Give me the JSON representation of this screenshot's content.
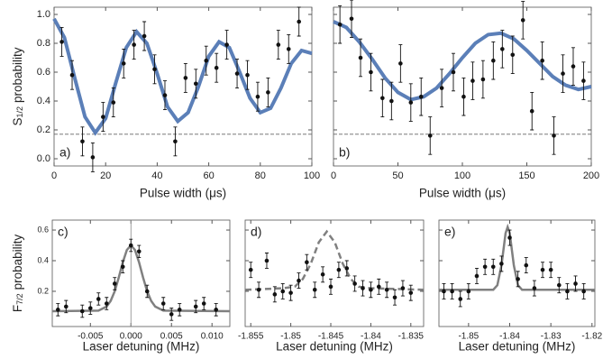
{
  "chart_data": [
    {
      "type": "scatter",
      "label": "a)",
      "label_corner": "bottom-left",
      "xlabel": "Pulse width (μs)",
      "ylabel": "S",
      "ylabel_sub": "1/2",
      "ylabel_rest": "probability",
      "xlim": [
        0,
        100
      ],
      "ylim": [
        -0.05,
        1.05
      ],
      "xticks": [
        0,
        20,
        40,
        60,
        80,
        100
      ],
      "yticks": [
        {
          "value": 0,
          "label": "0.0"
        },
        0.2,
        0.4,
        0.6,
        0.8,
        {
          "value": 1,
          "label": "1.0"
        }
      ],
      "ytick_labels": true,
      "hline": 0.17,
      "points": {
        "color": "#111111",
        "x": [
          3,
          7,
          11,
          15,
          19,
          23,
          27,
          31,
          35,
          39,
          43,
          47,
          51,
          55,
          59,
          63,
          67,
          71,
          75,
          79,
          83,
          87,
          91,
          95
        ],
        "values": [
          0.81,
          0.58,
          0.12,
          0.01,
          0.29,
          0.39,
          0.66,
          0.79,
          0.85,
          0.62,
          0.44,
          0.12,
          0.56,
          0.52,
          0.68,
          0.63,
          0.79,
          0.59,
          0.58,
          0.43,
          0.46,
          0.79,
          0.76,
          0.95
        ],
        "errors": [
          0.1,
          0.1,
          0.1,
          0.1,
          0.1,
          0.1,
          0.1,
          0.1,
          0.1,
          0.1,
          0.1,
          0.1,
          0.1,
          0.1,
          0.1,
          0.1,
          0.1,
          0.1,
          0.1,
          0.1,
          0.1,
          0.1,
          0.1,
          0.1
        ]
      },
      "fit": {
        "color": "#5b7fb8",
        "width": 4,
        "dash": false,
        "x": [
          0,
          4,
          8,
          12,
          16,
          20,
          24,
          28,
          32,
          36,
          40,
          44,
          48,
          52,
          56,
          60,
          64,
          68,
          72,
          76,
          80,
          84,
          88,
          92,
          96,
          100
        ],
        "values": [
          0.97,
          0.84,
          0.56,
          0.29,
          0.18,
          0.28,
          0.53,
          0.77,
          0.88,
          0.8,
          0.59,
          0.36,
          0.26,
          0.32,
          0.5,
          0.71,
          0.81,
          0.77,
          0.6,
          0.42,
          0.32,
          0.35,
          0.49,
          0.66,
          0.75,
          0.73
        ]
      }
    },
    {
      "type": "scatter",
      "label": "b)",
      "label_corner": "bottom-left",
      "xlabel": "Pulse width (μs)",
      "xlim": [
        0,
        200
      ],
      "ylim": [
        -0.05,
        1.05
      ],
      "xticks": [
        0,
        50,
        100,
        150,
        200
      ],
      "yticks": [
        0,
        0.2,
        0.4,
        0.6,
        0.8,
        1
      ],
      "ytick_labels": false,
      "hline": 0.17,
      "points": {
        "color": "#111111",
        "x": [
          5,
          14,
          21,
          29,
          38,
          45,
          52,
          60,
          68,
          75,
          84,
          93,
          101,
          108,
          116,
          124,
          131,
          139,
          147,
          154,
          162,
          171,
          178,
          186,
          194
        ],
        "values": [
          0.93,
          0.97,
          0.7,
          0.6,
          0.42,
          0.4,
          0.66,
          0.39,
          0.43,
          0.16,
          0.49,
          0.6,
          0.43,
          0.54,
          0.55,
          0.68,
          0.76,
          0.72,
          0.96,
          0.33,
          0.68,
          0.16,
          0.59,
          0.64,
          0.54
        ],
        "errors": [
          0.13,
          0.13,
          0.13,
          0.13,
          0.13,
          0.13,
          0.13,
          0.13,
          0.13,
          0.13,
          0.13,
          0.13,
          0.13,
          0.13,
          0.13,
          0.13,
          0.13,
          0.13,
          0.13,
          0.13,
          0.13,
          0.13,
          0.13,
          0.13,
          0.13
        ]
      },
      "fit": {
        "color": "#5b7fb8",
        "width": 4,
        "dash": false,
        "x": [
          0,
          10,
          20,
          30,
          40,
          50,
          60,
          70,
          80,
          90,
          100,
          110,
          120,
          130,
          140,
          150,
          160,
          170,
          180,
          190,
          200
        ],
        "values": [
          0.95,
          0.91,
          0.81,
          0.69,
          0.56,
          0.46,
          0.41,
          0.43,
          0.49,
          0.59,
          0.7,
          0.8,
          0.86,
          0.87,
          0.83,
          0.75,
          0.66,
          0.57,
          0.51,
          0.48,
          0.5
        ]
      }
    },
    {
      "type": "scatter",
      "label": "c)",
      "label_corner": "top-left",
      "xlabel": "Laser detuning (MHz)",
      "ylabel": "F",
      "ylabel_sub": "7/2",
      "ylabel_rest": "probability",
      "xlim": [
        -0.0097,
        0.0122
      ],
      "ylim": [
        -0.03,
        0.665
      ],
      "xticks": [
        -0.005,
        {
          "value": 0,
          "label": "0.000"
        },
        0.005,
        {
          "value": 0.01,
          "label": "0.010"
        }
      ],
      "yticks": [
        0.2,
        0.4,
        0.6
      ],
      "ytick_labels": true,
      "vline": 0,
      "points": {
        "color": "#111111",
        "x": [
          -0.009,
          -0.008,
          -0.006,
          -0.005,
          -0.004,
          -0.003,
          -0.002,
          -0.001,
          0,
          0.001,
          0.002,
          0.004,
          0.005,
          0.006,
          0.008,
          0.009,
          0.0105
        ],
        "values": [
          0.08,
          0.1,
          0.07,
          0.09,
          0.15,
          0.12,
          0.25,
          0.36,
          0.5,
          0.46,
          0.2,
          0.12,
          0.05,
          0.08,
          0.1,
          0.12,
          0.08
        ],
        "errors": [
          0.04,
          0.04,
          0.04,
          0.04,
          0.04,
          0.04,
          0.04,
          0.04,
          0.04,
          0.04,
          0.04,
          0.04,
          0.04,
          0.04,
          0.04,
          0.04,
          0.04
        ]
      },
      "fit": {
        "color": "#808080",
        "width": 2.5,
        "dash": false,
        "x": [
          -0.0097,
          -0.004,
          -0.003,
          -0.0025,
          -0.002,
          -0.0015,
          -0.001,
          -0.0005,
          0,
          0.0005,
          0.001,
          0.0015,
          0.002,
          0.0025,
          0.003,
          0.004,
          0.0122
        ],
        "values": [
          0.07,
          0.074,
          0.1,
          0.137,
          0.2,
          0.29,
          0.39,
          0.47,
          0.5,
          0.47,
          0.39,
          0.29,
          0.2,
          0.137,
          0.1,
          0.074,
          0.07
        ]
      }
    },
    {
      "type": "scatter",
      "label": "d)",
      "label_corner": "top-left",
      "xlabel": "Laser detuning (MHz)",
      "xlim": [
        -1.8557,
        -1.8334
      ],
      "ylim": [
        -0.03,
        0.665
      ],
      "xticks": [
        -1.855,
        -1.85,
        -1.845,
        -1.84,
        -1.835
      ],
      "yticks": [
        0.2,
        0.4,
        0.6
      ],
      "ytick_labels": false,
      "points": {
        "color": "#111111",
        "x": [
          -1.855,
          -1.854,
          -1.853,
          -1.852,
          -1.851,
          -1.85,
          -1.849,
          -1.848,
          -1.847,
          -1.846,
          -1.845,
          -1.844,
          -1.843,
          -1.842,
          -1.841,
          -1.84,
          -1.839,
          -1.838,
          -1.837,
          -1.836,
          -1.835
        ],
        "values": [
          0.34,
          0.21,
          0.4,
          0.18,
          0.2,
          0.19,
          0.27,
          0.39,
          0.21,
          0.31,
          0.23,
          0.34,
          0.35,
          0.25,
          0.22,
          0.21,
          0.23,
          0.21,
          0.16,
          0.22,
          0.19
        ],
        "errors": [
          0.05,
          0.05,
          0.05,
          0.05,
          0.05,
          0.05,
          0.05,
          0.05,
          0.05,
          0.05,
          0.05,
          0.05,
          0.05,
          0.05,
          0.05,
          0.05,
          0.05,
          0.05,
          0.05,
          0.05,
          0.05
        ]
      },
      "fit": {
        "color": "#808080",
        "width": 2.5,
        "dash": true,
        "x": [
          -1.8557,
          -1.851,
          -1.8495,
          -1.8485,
          -1.8475,
          -1.8465,
          -1.8455,
          -1.8445,
          -1.8435,
          -1.8425,
          -1.8415,
          -1.84,
          -1.8334
        ],
        "values": [
          0.21,
          0.22,
          0.23,
          0.28,
          0.38,
          0.52,
          0.59,
          0.52,
          0.38,
          0.28,
          0.23,
          0.22,
          0.21
        ]
      }
    },
    {
      "type": "scatter",
      "label": "e)",
      "label_corner": "top-left",
      "xlabel": "Laser detuning (MHz)",
      "xlim": [
        -1.8572,
        -1.8193
      ],
      "ylim": [
        -0.03,
        0.665
      ],
      "xticks": [
        -1.85,
        -1.84,
        -1.83,
        -1.82
      ],
      "yticks": [
        0.2,
        0.4,
        0.6
      ],
      "ytick_labels": false,
      "points": {
        "color": "#111111",
        "x": [
          -1.856,
          -1.854,
          -1.852,
          -1.85,
          -1.848,
          -1.846,
          -1.844,
          -1.842,
          -1.84,
          -1.838,
          -1.836,
          -1.834,
          -1.832,
          -1.83,
          -1.828,
          -1.826,
          -1.824,
          -1.822
        ],
        "values": [
          0.2,
          0.2,
          0.15,
          0.2,
          0.3,
          0.36,
          0.36,
          0.38,
          0.55,
          0.28,
          0.37,
          0.22,
          0.34,
          0.34,
          0.24,
          0.2,
          0.25,
          0.2
        ],
        "errors": [
          0.05,
          0.05,
          0.05,
          0.05,
          0.05,
          0.05,
          0.05,
          0.05,
          0.05,
          0.05,
          0.05,
          0.05,
          0.05,
          0.05,
          0.05,
          0.05,
          0.05,
          0.05
        ]
      },
      "fit": {
        "color": "#808080",
        "width": 2.5,
        "dash": false,
        "x": [
          -1.8572,
          -1.844,
          -1.843,
          -1.842,
          -1.841,
          -1.8405,
          -1.84,
          -1.839,
          -1.838,
          -1.837,
          -1.8193
        ],
        "values": [
          0.21,
          0.21,
          0.24,
          0.37,
          0.58,
          0.62,
          0.58,
          0.37,
          0.24,
          0.21,
          0.21
        ]
      }
    }
  ]
}
